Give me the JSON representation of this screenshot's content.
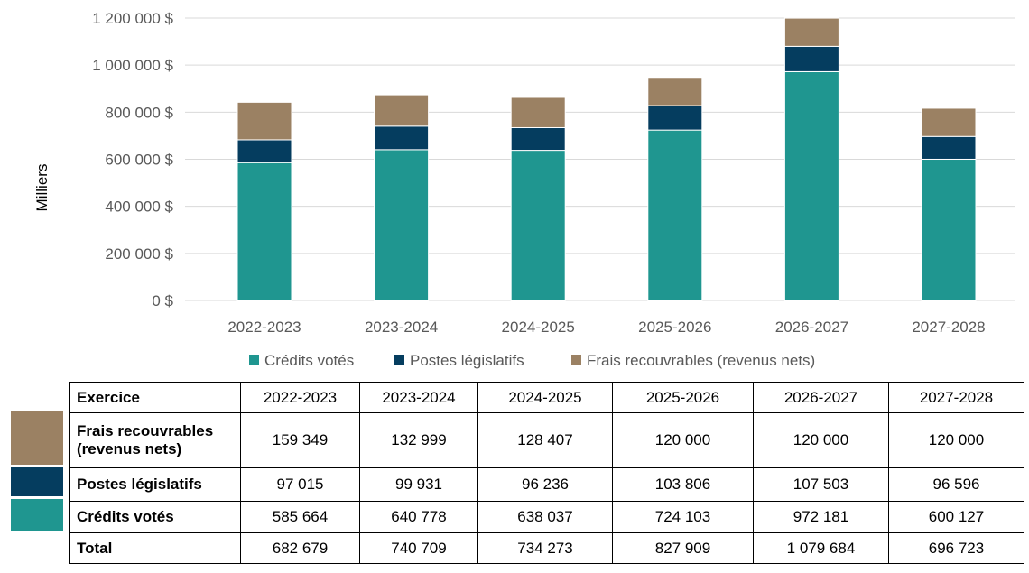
{
  "chart_data": {
    "type": "bar",
    "stacked": true,
    "categories": [
      "2022-2023",
      "2023-2024",
      "2024-2025",
      "2025-2026",
      "2026-2027",
      "2027-2028"
    ],
    "series": [
      {
        "name": "Crédits votés",
        "color": "#1f9690",
        "values": [
          585664,
          640778,
          638037,
          724103,
          972181,
          600127
        ]
      },
      {
        "name": "Postes législatifs",
        "color": "#053d5f",
        "values": [
          97015,
          99931,
          96236,
          103806,
          107503,
          96596
        ]
      },
      {
        "name": "Frais recouvrables (revenus nets)",
        "color": "#9b8163",
        "values": [
          159349,
          132999,
          128407,
          120000,
          120000,
          120000
        ]
      }
    ],
    "ylabel": "Milliers",
    "ylim": [
      0,
      1200000
    ],
    "yticks": [
      "0 $",
      "200 000 $",
      "400 000 $",
      "600 000 $",
      "800 000 $",
      "1 000 000 $",
      "1 200 000 $"
    ],
    "grid": true,
    "legend": "bottom"
  },
  "table": {
    "header": "Exercice",
    "rows": [
      {
        "label": "Frais recouvrables (revenus nets)",
        "values": [
          "159 349",
          "132 999",
          "128 407",
          "120 000",
          "120 000",
          "120 000"
        ]
      },
      {
        "label": "Postes législatifs",
        "values": [
          "97 015",
          "99 931",
          "96 236",
          "103 806",
          "107 503",
          "96 596"
        ]
      },
      {
        "label": "Crédits votés",
        "values": [
          "585 664",
          "640 778",
          "638 037",
          "724 103",
          "972 181",
          "600 127"
        ]
      },
      {
        "label": "Total",
        "values": [
          "682 679",
          "740 709",
          "734 273",
          "827 909",
          "1 079 684",
          "696 723"
        ]
      }
    ]
  }
}
